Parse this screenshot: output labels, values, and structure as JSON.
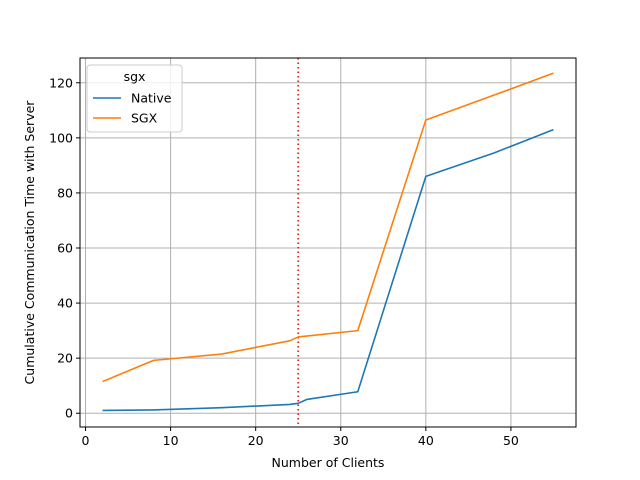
{
  "chart_data": {
    "type": "line",
    "xlabel": "Number of Clients",
    "ylabel": "Cumulative Communication Time with Server",
    "xlim": [
      -0.65,
      57.65
    ],
    "ylim": [
      -5,
      129
    ],
    "xticks": [
      0,
      10,
      20,
      30,
      40,
      50
    ],
    "yticks": [
      0,
      20,
      40,
      60,
      80,
      100,
      120
    ],
    "grid": true,
    "legend": {
      "title": "sgx",
      "placement": "top-left"
    },
    "reference_line": {
      "x": 25,
      "style": "dotted",
      "color": "#d62728"
    },
    "series": [
      {
        "name": "Native",
        "color": "#1f77b4",
        "x": [
          2,
          8,
          16,
          24,
          25,
          26,
          32,
          40,
          48,
          55
        ],
        "y": [
          1,
          1.2,
          2,
          3.2,
          3.6,
          5,
          7.8,
          86,
          94.5,
          103
        ]
      },
      {
        "name": "SGX",
        "color": "#ff7f0e",
        "x": [
          2,
          8,
          16,
          24,
          25,
          32,
          40,
          48,
          55
        ],
        "y": [
          11.5,
          19.2,
          21.5,
          26.3,
          27.7,
          30,
          106.5,
          115.5,
          123.5
        ]
      }
    ]
  }
}
